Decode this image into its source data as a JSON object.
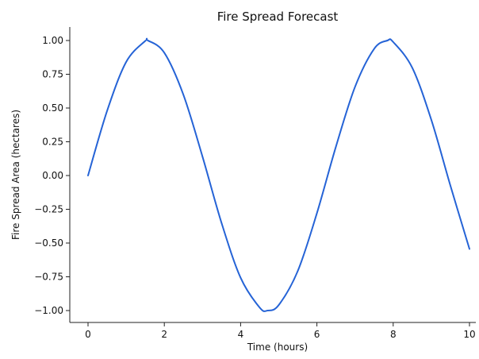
{
  "chart_data": {
    "type": "line",
    "title": "Fire Spread Forecast",
    "xlabel": "Time (hours)",
    "ylabel": "Fire Spread Area (hectares)",
    "xlim": [
      0,
      10
    ],
    "ylim": [
      -1.0,
      1.0
    ],
    "xticks": [
      0,
      2,
      4,
      6,
      8,
      10
    ],
    "xtick_labels": [
      "0",
      "2",
      "4",
      "6",
      "8",
      "10"
    ],
    "yticks": [
      1.0,
      0.75,
      0.5,
      0.25,
      0.0,
      -0.25,
      -0.5,
      -0.75,
      -1.0
    ],
    "ytick_labels": [
      "1.00",
      "0.75",
      "0.50",
      "0.25",
      "0.00",
      "−0.25",
      "−0.50",
      "−0.75",
      "−1.00"
    ],
    "grid": false,
    "series": [
      {
        "color": "#2563d6",
        "x": [
          0,
          0.5,
          1.0,
          1.5,
          1.57,
          2.0,
          2.5,
          3.0,
          3.5,
          4.0,
          4.5,
          4.71,
          5.0,
          5.5,
          6.0,
          6.5,
          7.0,
          7.5,
          7.85,
          8.0,
          8.5,
          9.0,
          9.5,
          10.0
        ],
        "y": [
          0.0,
          0.479,
          0.841,
          0.997,
          1.0,
          0.909,
          0.598,
          0.141,
          -0.351,
          -0.757,
          -0.978,
          -1.0,
          -0.959,
          -0.706,
          -0.279,
          0.215,
          0.657,
          0.938,
          1.0,
          0.989,
          0.798,
          0.412,
          -0.075,
          -0.544
        ]
      }
    ]
  }
}
